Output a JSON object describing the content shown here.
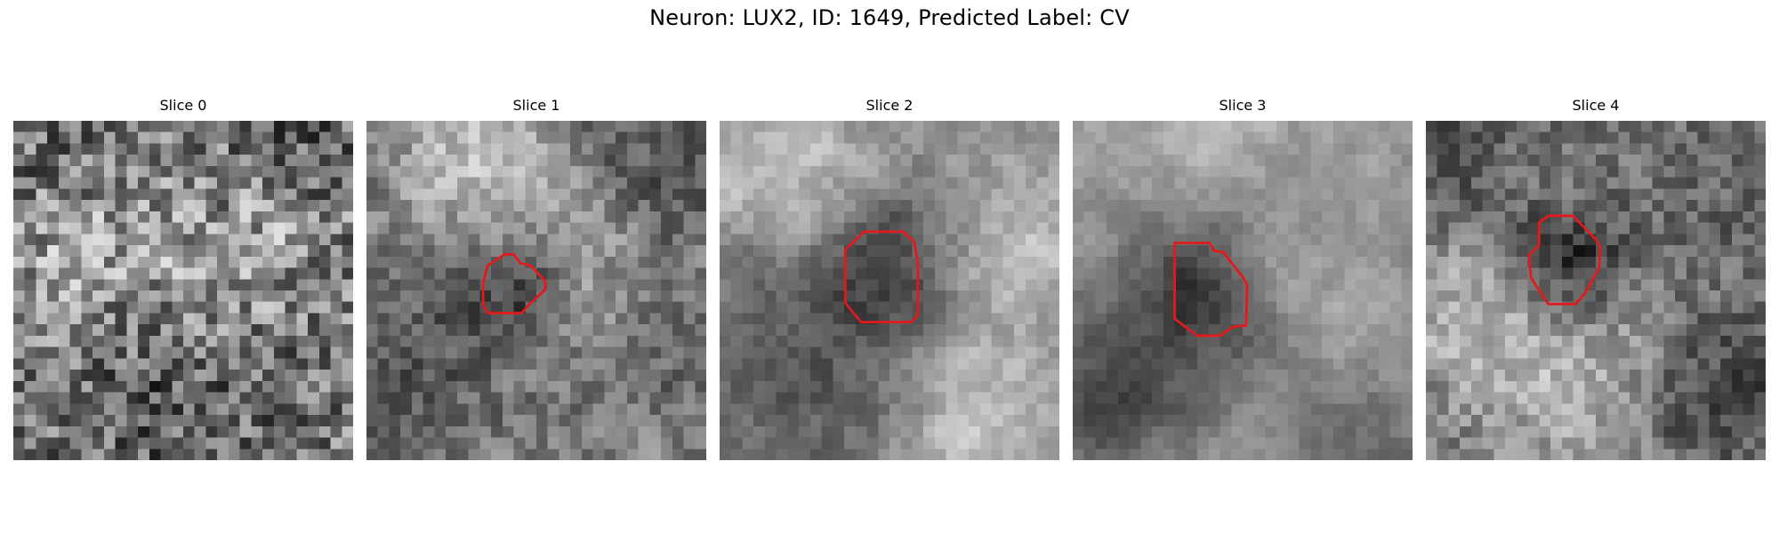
{
  "figure": {
    "suptitle": "Neuron: LUX2, ID: 1649, Predicted Label: CV",
    "contour_color": "#e31a1c",
    "slices": [
      {
        "title": "Slice 0",
        "contour": []
      },
      {
        "title": "Slice 1",
        "contour": [
          [
            10.7,
            12.8
          ],
          [
            12.2,
            11.8
          ],
          [
            13.0,
            11.8
          ],
          [
            13.6,
            12.6
          ],
          [
            14.5,
            12.8
          ],
          [
            15.8,
            14.2
          ],
          [
            15.8,
            14.9
          ],
          [
            14.4,
            16.2
          ],
          [
            13.7,
            17.0
          ],
          [
            10.7,
            17.0
          ],
          [
            10.3,
            16.2
          ],
          [
            10.3,
            14.3
          ]
        ]
      },
      {
        "title": "Slice 2",
        "contour": [
          [
            11.1,
            11.4
          ],
          [
            12.8,
            9.8
          ],
          [
            16.2,
            9.8
          ],
          [
            17.2,
            10.7
          ],
          [
            17.5,
            12.6
          ],
          [
            17.5,
            17.2
          ],
          [
            16.9,
            17.8
          ],
          [
            12.5,
            17.8
          ],
          [
            11.1,
            16.1
          ]
        ]
      },
      {
        "title": "Slice 3",
        "contour": [
          [
            9.0,
            10.8
          ],
          [
            12.1,
            10.8
          ],
          [
            12.5,
            11.5
          ],
          [
            13.3,
            11.6
          ],
          [
            15.0,
            13.8
          ],
          [
            15.4,
            14.5
          ],
          [
            15.3,
            18.1
          ],
          [
            14.2,
            18.2
          ],
          [
            13.0,
            19.0
          ],
          [
            11.0,
            19.0
          ],
          [
            9.0,
            17.5
          ]
        ]
      },
      {
        "title": "Slice 4",
        "contour": [
          [
            10.0,
            9.0
          ],
          [
            10.8,
            8.4
          ],
          [
            13.0,
            8.4
          ],
          [
            15.1,
            10.6
          ],
          [
            15.4,
            11.2
          ],
          [
            15.3,
            13.0
          ],
          [
            14.1,
            15.2
          ],
          [
            13.2,
            16.2
          ],
          [
            10.8,
            16.2
          ],
          [
            10.2,
            15.3
          ],
          [
            9.3,
            13.9
          ],
          [
            9.1,
            11.9
          ],
          [
            10.0,
            11.0
          ]
        ]
      }
    ]
  }
}
